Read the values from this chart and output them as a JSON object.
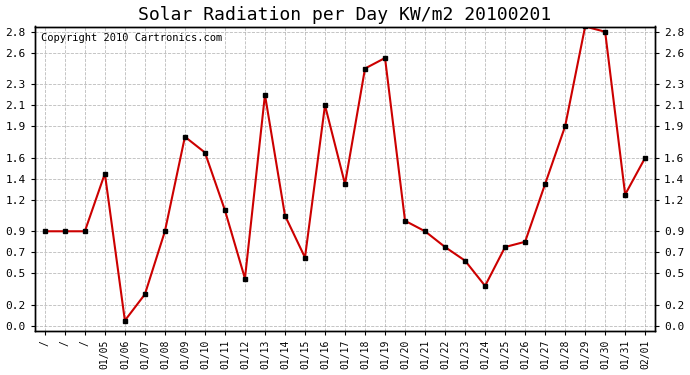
{
  "title": "Solar Radiation per Day KW/m2 20100201",
  "copyright": "Copyright 2010 Cartronics.com",
  "dates": [
    "/",
    "/",
    "/",
    "01/05",
    "01/06",
    "01/07",
    "01/08",
    "01/09",
    "01/10",
    "01/11",
    "01/12",
    "01/13",
    "01/14",
    "01/15",
    "01/16",
    "01/17",
    "01/18",
    "01/19",
    "01/20",
    "01/21",
    "01/22",
    "01/23",
    "01/24",
    "01/25",
    "01/26",
    "01/27",
    "01/28",
    "01/29",
    "01/30",
    "01/31",
    "02/01"
  ],
  "values": [
    0.9,
    0.9,
    0.9,
    1.45,
    0.05,
    0.3,
    0.9,
    1.8,
    1.65,
    1.1,
    0.45,
    2.2,
    1.05,
    0.65,
    2.1,
    1.35,
    2.45,
    2.55,
    1.0,
    0.9,
    0.75,
    0.62,
    0.38,
    0.75,
    0.8,
    1.35,
    1.9,
    2.85,
    2.8,
    1.25,
    1.6
  ],
  "line_color": "#cc0000",
  "marker_color": "#000000",
  "bg_color": "#ffffff",
  "grid_color": "#aaaaaa",
  "ylim_min": 0.0,
  "ylim_max": 2.8,
  "yticks": [
    0.0,
    0.2,
    0.5,
    0.7,
    0.9,
    1.2,
    1.4,
    1.6,
    1.9,
    2.1,
    2.3,
    2.6,
    2.8
  ],
  "title_fontsize": 13,
  "copyright_fontsize": 7.5
}
